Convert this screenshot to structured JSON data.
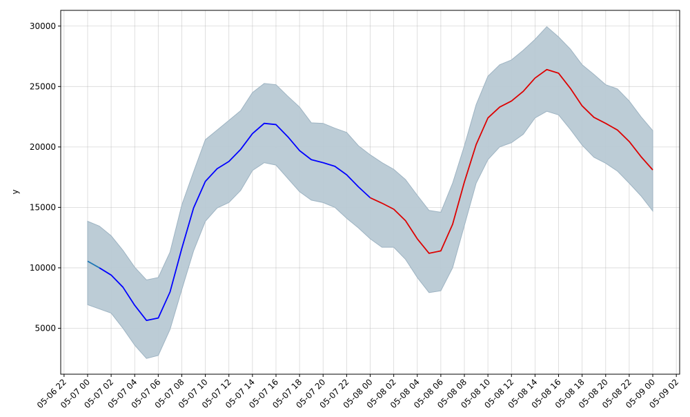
{
  "chart_data": {
    "type": "line",
    "title": "",
    "xlabel": "",
    "ylabel": "y",
    "grid": true,
    "x_range": [
      "2023-05-06 21:43",
      "2023-05-09 02:17"
    ],
    "ylim": [
      1200,
      31300
    ],
    "x_tick_labels": [
      "05-06 22",
      "05-07 00",
      "05-07 02",
      "05-07 04",
      "05-07 06",
      "05-07 08",
      "05-07 10",
      "05-07 12",
      "05-07 14",
      "05-07 16",
      "05-07 18",
      "05-07 20",
      "05-07 22",
      "05-08 00",
      "05-08 02",
      "05-08 04",
      "05-08 06",
      "05-08 08",
      "05-08 10",
      "05-08 12",
      "05-08 14",
      "05-08 16",
      "05-08 18",
      "05-08 20",
      "05-08 22",
      "05-09 00",
      "05-09 02"
    ],
    "y_ticks": [
      5000,
      10000,
      15000,
      20000,
      25000,
      30000
    ],
    "hours": [
      "05-07 00",
      "05-07 01",
      "05-07 02",
      "05-07 03",
      "05-07 04",
      "05-07 05",
      "05-07 06",
      "05-07 07",
      "05-07 08",
      "05-07 09",
      "05-07 10",
      "05-07 11",
      "05-07 12",
      "05-07 13",
      "05-07 14",
      "05-07 15",
      "05-07 16",
      "05-07 17",
      "05-07 18",
      "05-07 19",
      "05-07 20",
      "05-07 21",
      "05-07 22",
      "05-07 23",
      "05-08 00",
      "05-08 01",
      "05-08 02",
      "05-08 03",
      "05-08 04",
      "05-08 05",
      "05-08 06",
      "05-08 07",
      "05-08 08",
      "05-08 09",
      "05-08 10",
      "05-08 11",
      "05-08 12",
      "05-08 13",
      "05-08 14",
      "05-08 15",
      "05-08 16",
      "05-08 17",
      "05-08 18",
      "05-08 19",
      "05-08 20",
      "05-08 21",
      "05-08 22",
      "05-08 23",
      "05-09 00"
    ],
    "band_upper": [
      13850,
      13450,
      12650,
      11450,
      10050,
      9000,
      9200,
      11300,
      15200,
      17950,
      20600,
      21400,
      22200,
      23000,
      24500,
      25250,
      25150,
      24200,
      23300,
      22000,
      21950,
      21550,
      21200,
      20100,
      19350,
      18700,
      18150,
      17300,
      16000,
      14750,
      14600,
      17000,
      20100,
      23500,
      25850,
      26800,
      27200,
      28000,
      28900,
      29950,
      29100,
      28100,
      26800,
      26000,
      25150,
      24800,
      23800,
      22500,
      21350
    ],
    "band_lower": [
      6950,
      6600,
      6250,
      5000,
      3600,
      2500,
      2750,
      4900,
      8200,
      11400,
      13850,
      14950,
      15400,
      16400,
      18050,
      18700,
      18500,
      17400,
      16300,
      15600,
      15400,
      15000,
      14100,
      13300,
      12400,
      11700,
      11700,
      10700,
      9200,
      7950,
      8100,
      10000,
      13500,
      17000,
      18950,
      20000,
      20350,
      21050,
      22400,
      22950,
      22650,
      21450,
      20150,
      19150,
      18650,
      18000,
      17000,
      15950,
      14700
    ],
    "series": [
      {
        "color": "#1f77b4",
        "values": [
          10550,
          10000
        ]
      },
      {
        "color": "#0000ff",
        "values": [
          null,
          10000,
          9400,
          8400,
          6900,
          5650,
          5850,
          8000,
          11600,
          14950,
          17150,
          18200,
          18800,
          19800,
          21100,
          21950,
          21850,
          20850,
          19700,
          18950,
          18700,
          18400,
          17700,
          16700,
          15800
        ]
      },
      {
        "color": "#dd0000",
        "values": [
          null,
          null,
          null,
          null,
          null,
          null,
          null,
          null,
          null,
          null,
          null,
          null,
          null,
          null,
          null,
          null,
          null,
          null,
          null,
          null,
          null,
          null,
          null,
          null,
          15800,
          15350,
          14850,
          13900,
          12400,
          11200,
          11400,
          13600,
          17100,
          20200,
          22400,
          23300,
          23800,
          24600,
          25700,
          26400,
          26100,
          24850,
          23400,
          22450,
          21950,
          21400,
          20450,
          19200,
          18100
        ]
      }
    ],
    "band_color": "#b8c9d4",
    "band_edge_color": "#9db3c2"
  }
}
